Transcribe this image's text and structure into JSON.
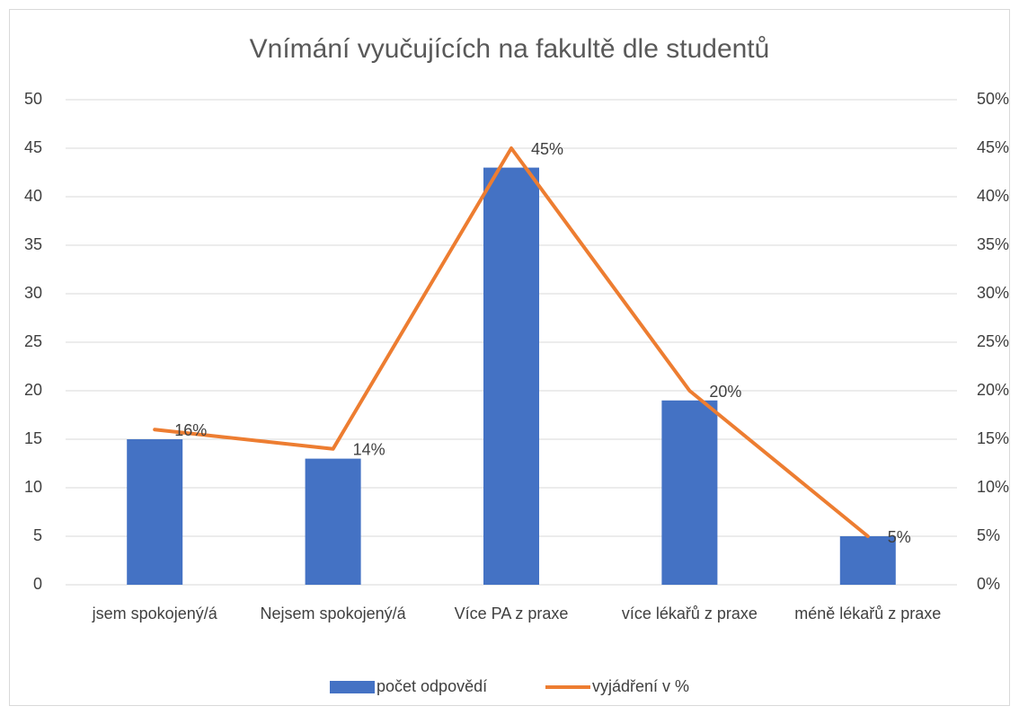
{
  "chart_data": {
    "type": "bar",
    "title": "Vnímání vyučujících na fakultě dle studentů",
    "categories": [
      "jsem spokojený/á",
      "Nejsem spokojený/á",
      "Více PA z praxe",
      "více lékařů z praxe",
      "méně lékařů z praxe"
    ],
    "series": [
      {
        "name": "počet odpovědí",
        "type": "bar",
        "color": "#4472c4",
        "values": [
          15,
          13,
          43,
          19,
          5
        ]
      },
      {
        "name": "vyjádření v %",
        "type": "line",
        "axis": "y2",
        "color": "#ed7d31",
        "values": [
          16,
          14,
          45,
          20,
          5
        ],
        "value_labels": [
          "16%",
          "14%",
          "45%",
          "20%",
          "5%"
        ]
      }
    ],
    "ylim": [
      0,
      50
    ],
    "yticks": [
      0,
      5,
      10,
      15,
      20,
      25,
      30,
      35,
      40,
      45,
      50
    ],
    "y2lim": [
      0,
      50
    ],
    "y2ticks": [
      {
        "value": 0,
        "label": "0%"
      },
      {
        "value": 5,
        "label": "5%"
      },
      {
        "value": 10,
        "label": "10%"
      },
      {
        "value": 15,
        "label": "15%"
      },
      {
        "value": 20,
        "label": "20%"
      },
      {
        "value": 25,
        "label": "25%"
      },
      {
        "value": 30,
        "label": "30%"
      },
      {
        "value": 35,
        "label": "35%"
      },
      {
        "value": 40,
        "label": "40%"
      },
      {
        "value": 45,
        "label": "45%"
      },
      {
        "value": 50,
        "label": "50%"
      }
    ],
    "grid": true,
    "legend": "bottom"
  }
}
